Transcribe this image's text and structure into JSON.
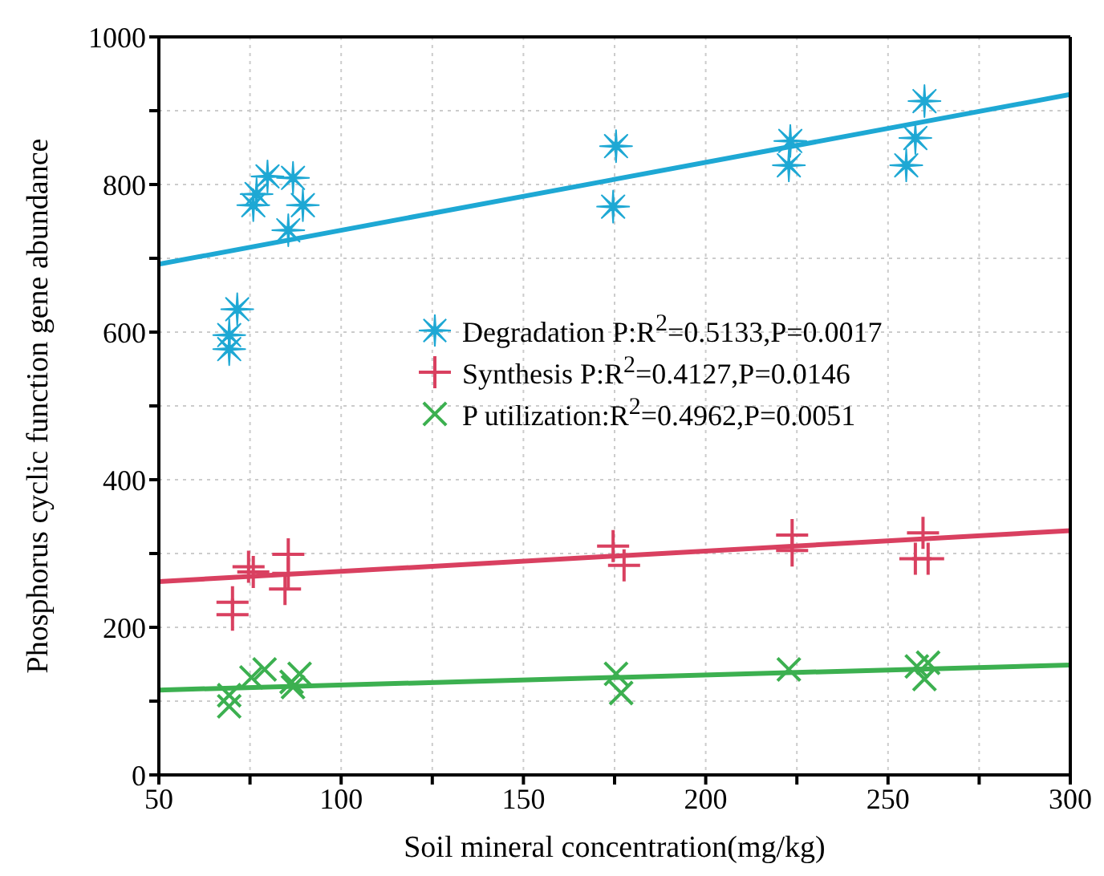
{
  "chart_data": {
    "type": "scatter",
    "xlabel": "Soil mineral concentration(mg/kg)",
    "ylabel": "Phosphorus cyclic function gene abundance",
    "xlim": [
      50,
      300
    ],
    "xticks": [
      50,
      {
        "value": 75,
        "label": null
      },
      100,
      {
        "value": 125,
        "label": null
      },
      150,
      {
        "value": 175,
        "label": null
      },
      200,
      {
        "value": 225,
        "label": null
      },
      250,
      {
        "value": 275,
        "label": null
      },
      300
    ],
    "ylim": [
      0,
      1000
    ],
    "yticks": [
      0,
      {
        "value": 100,
        "label": null
      },
      200,
      {
        "value": 300,
        "label": null
      },
      400,
      {
        "value": 500,
        "label": null
      },
      600,
      {
        "value": 700,
        "label": null
      },
      800,
      {
        "value": 900,
        "label": null
      },
      1000
    ],
    "grid": true,
    "legend": "center",
    "series": [
      {
        "name": "Degradation P:R$^{2}$=0.5133,P=0.0017",
        "color": "#1ea8d4",
        "x": [
          69.3,
          69.3,
          71.5,
          75.9,
          76.8,
          79.8,
          86.8,
          89.5,
          85.5,
          175.4,
          174.6,
          223.2,
          222.8,
          257.5,
          255,
          260
        ],
        "values": [
          577,
          596,
          631,
          772,
          787,
          811,
          809,
          772,
          738,
          852,
          770,
          859,
          826,
          863,
          826,
          913
        ]
      },
      {
        "name": "Synthesis P:R$^{2}$=0.4127,P=0.0146",
        "color": "#d94060",
        "marker": "plus",
        "x": [
          70.2,
          70.2,
          74.6,
          75.9,
          85.5,
          85.5,
          84.6,
          174.6,
          177.6,
          223.7,
          223.7,
          259.6,
          257.5,
          261
        ],
        "values": [
          234,
          217,
          282,
          275,
          299,
          273,
          252,
          310,
          284,
          325,
          304,
          328,
          293,
          293
        ]
      },
      {
        "name": "P utilization:R$^{2}$=0.4962,P=0.0051",
        "color": "#3cb050",
        "marker": "cross",
        "x": [
          69.3,
          69.3,
          75.4,
          79,
          86.4,
          88.6,
          86.8,
          175.4,
          176.8,
          222.8,
          257.9,
          261,
          260
        ],
        "values": [
          93,
          108,
          132,
          143,
          126,
          137,
          119,
          137,
          111,
          143,
          147,
          152,
          130
        ]
      },
      {
        "type": "line",
        "color": "#1ea8d4",
        "marker": "none",
        "x": [
          50,
          300
        ],
        "values": [
          692,
          922
        ]
      },
      {
        "type": "line",
        "color": "#d94060",
        "marker": "none",
        "x": [
          50,
          300
        ],
        "values": [
          262,
          331
        ]
      },
      {
        "type": "line",
        "color": "#3cb050",
        "marker": "none",
        "x": [
          50,
          300
        ],
        "values": [
          115,
          149
        ]
      }
    ]
  }
}
